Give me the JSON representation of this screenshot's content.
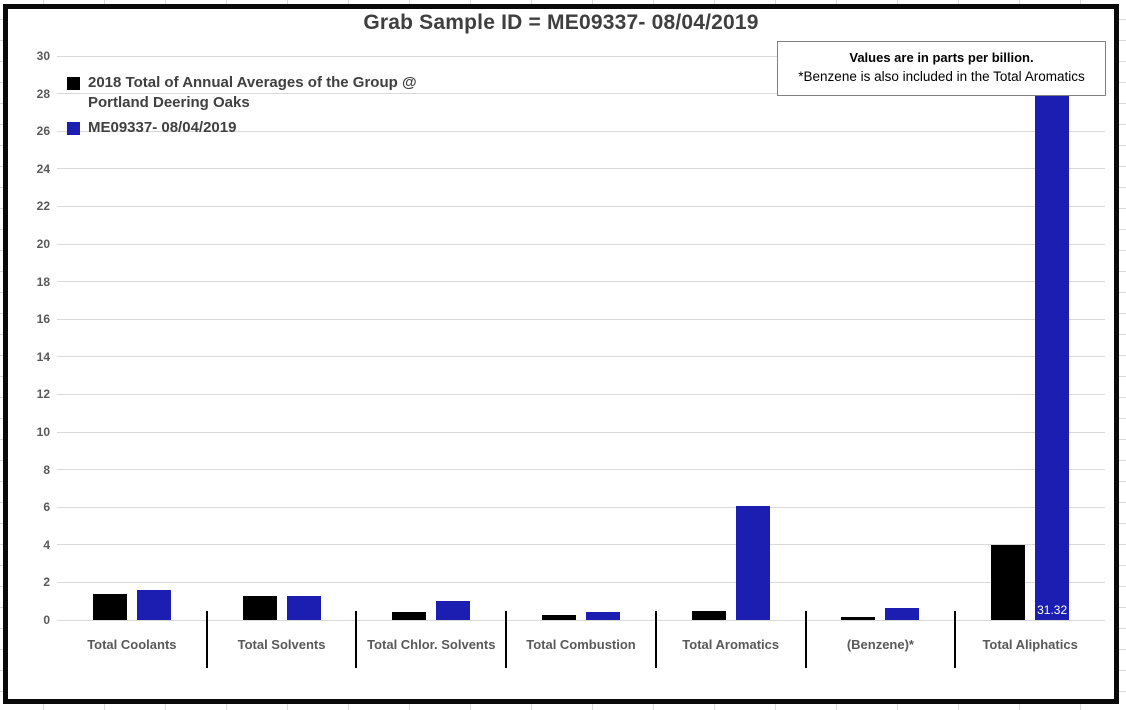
{
  "title": "Grab Sample ID = ME09337- 08/04/2019",
  "note_box": {
    "line1": "Values are in parts per billion.",
    "line2": "*Benzene is also included in the Total Aromatics"
  },
  "legend": {
    "items": [
      {
        "label": "2018 Total of Annual Averages of the Group @\nPortland Deering Oaks",
        "color": "#000000"
      },
      {
        "label": "ME09337- 08/04/2019",
        "color": "#1c1eb2"
      }
    ]
  },
  "palette": {
    "series_2018": "#000000",
    "series_grab_sample": "#1c1eb2",
    "gridline": "#d9d9d9",
    "axis_text": "#595959",
    "title_text": "#3f3f3f",
    "chart_border": "#0a0a0a"
  },
  "chart_data": {
    "type": "bar",
    "title": "Grab Sample ID = ME09337- 08/04/2019",
    "unit_note": "Values are in parts per billion.",
    "categories": [
      "Total Coolants",
      "Total Solvents",
      "Total Chlor. Solvents",
      "Total Combustion",
      "Total Aromatics",
      "(Benzene)*",
      "Total Aliphatics"
    ],
    "series": [
      {
        "name": "2018 Total of Annual Averages of the Group @ Portland Deering Oaks",
        "color": "#000000",
        "values": [
          1.4,
          1.3,
          0.4,
          0.25,
          0.5,
          0.15,
          4.0
        ]
      },
      {
        "name": "ME09337- 08/04/2019",
        "color": "#1c1eb2",
        "values": [
          1.6,
          1.3,
          1.0,
          0.4,
          6.05,
          0.65,
          31.32
        ]
      }
    ],
    "xlabel": "",
    "ylabel": "",
    "ylim": [
      0,
      30
    ],
    "ytick_step": 2,
    "grid": true,
    "legend_position": "top-left",
    "data_labels": [
      {
        "series_index": 1,
        "category_index": 6,
        "text": "31.32",
        "color": "#ffffff"
      }
    ]
  }
}
